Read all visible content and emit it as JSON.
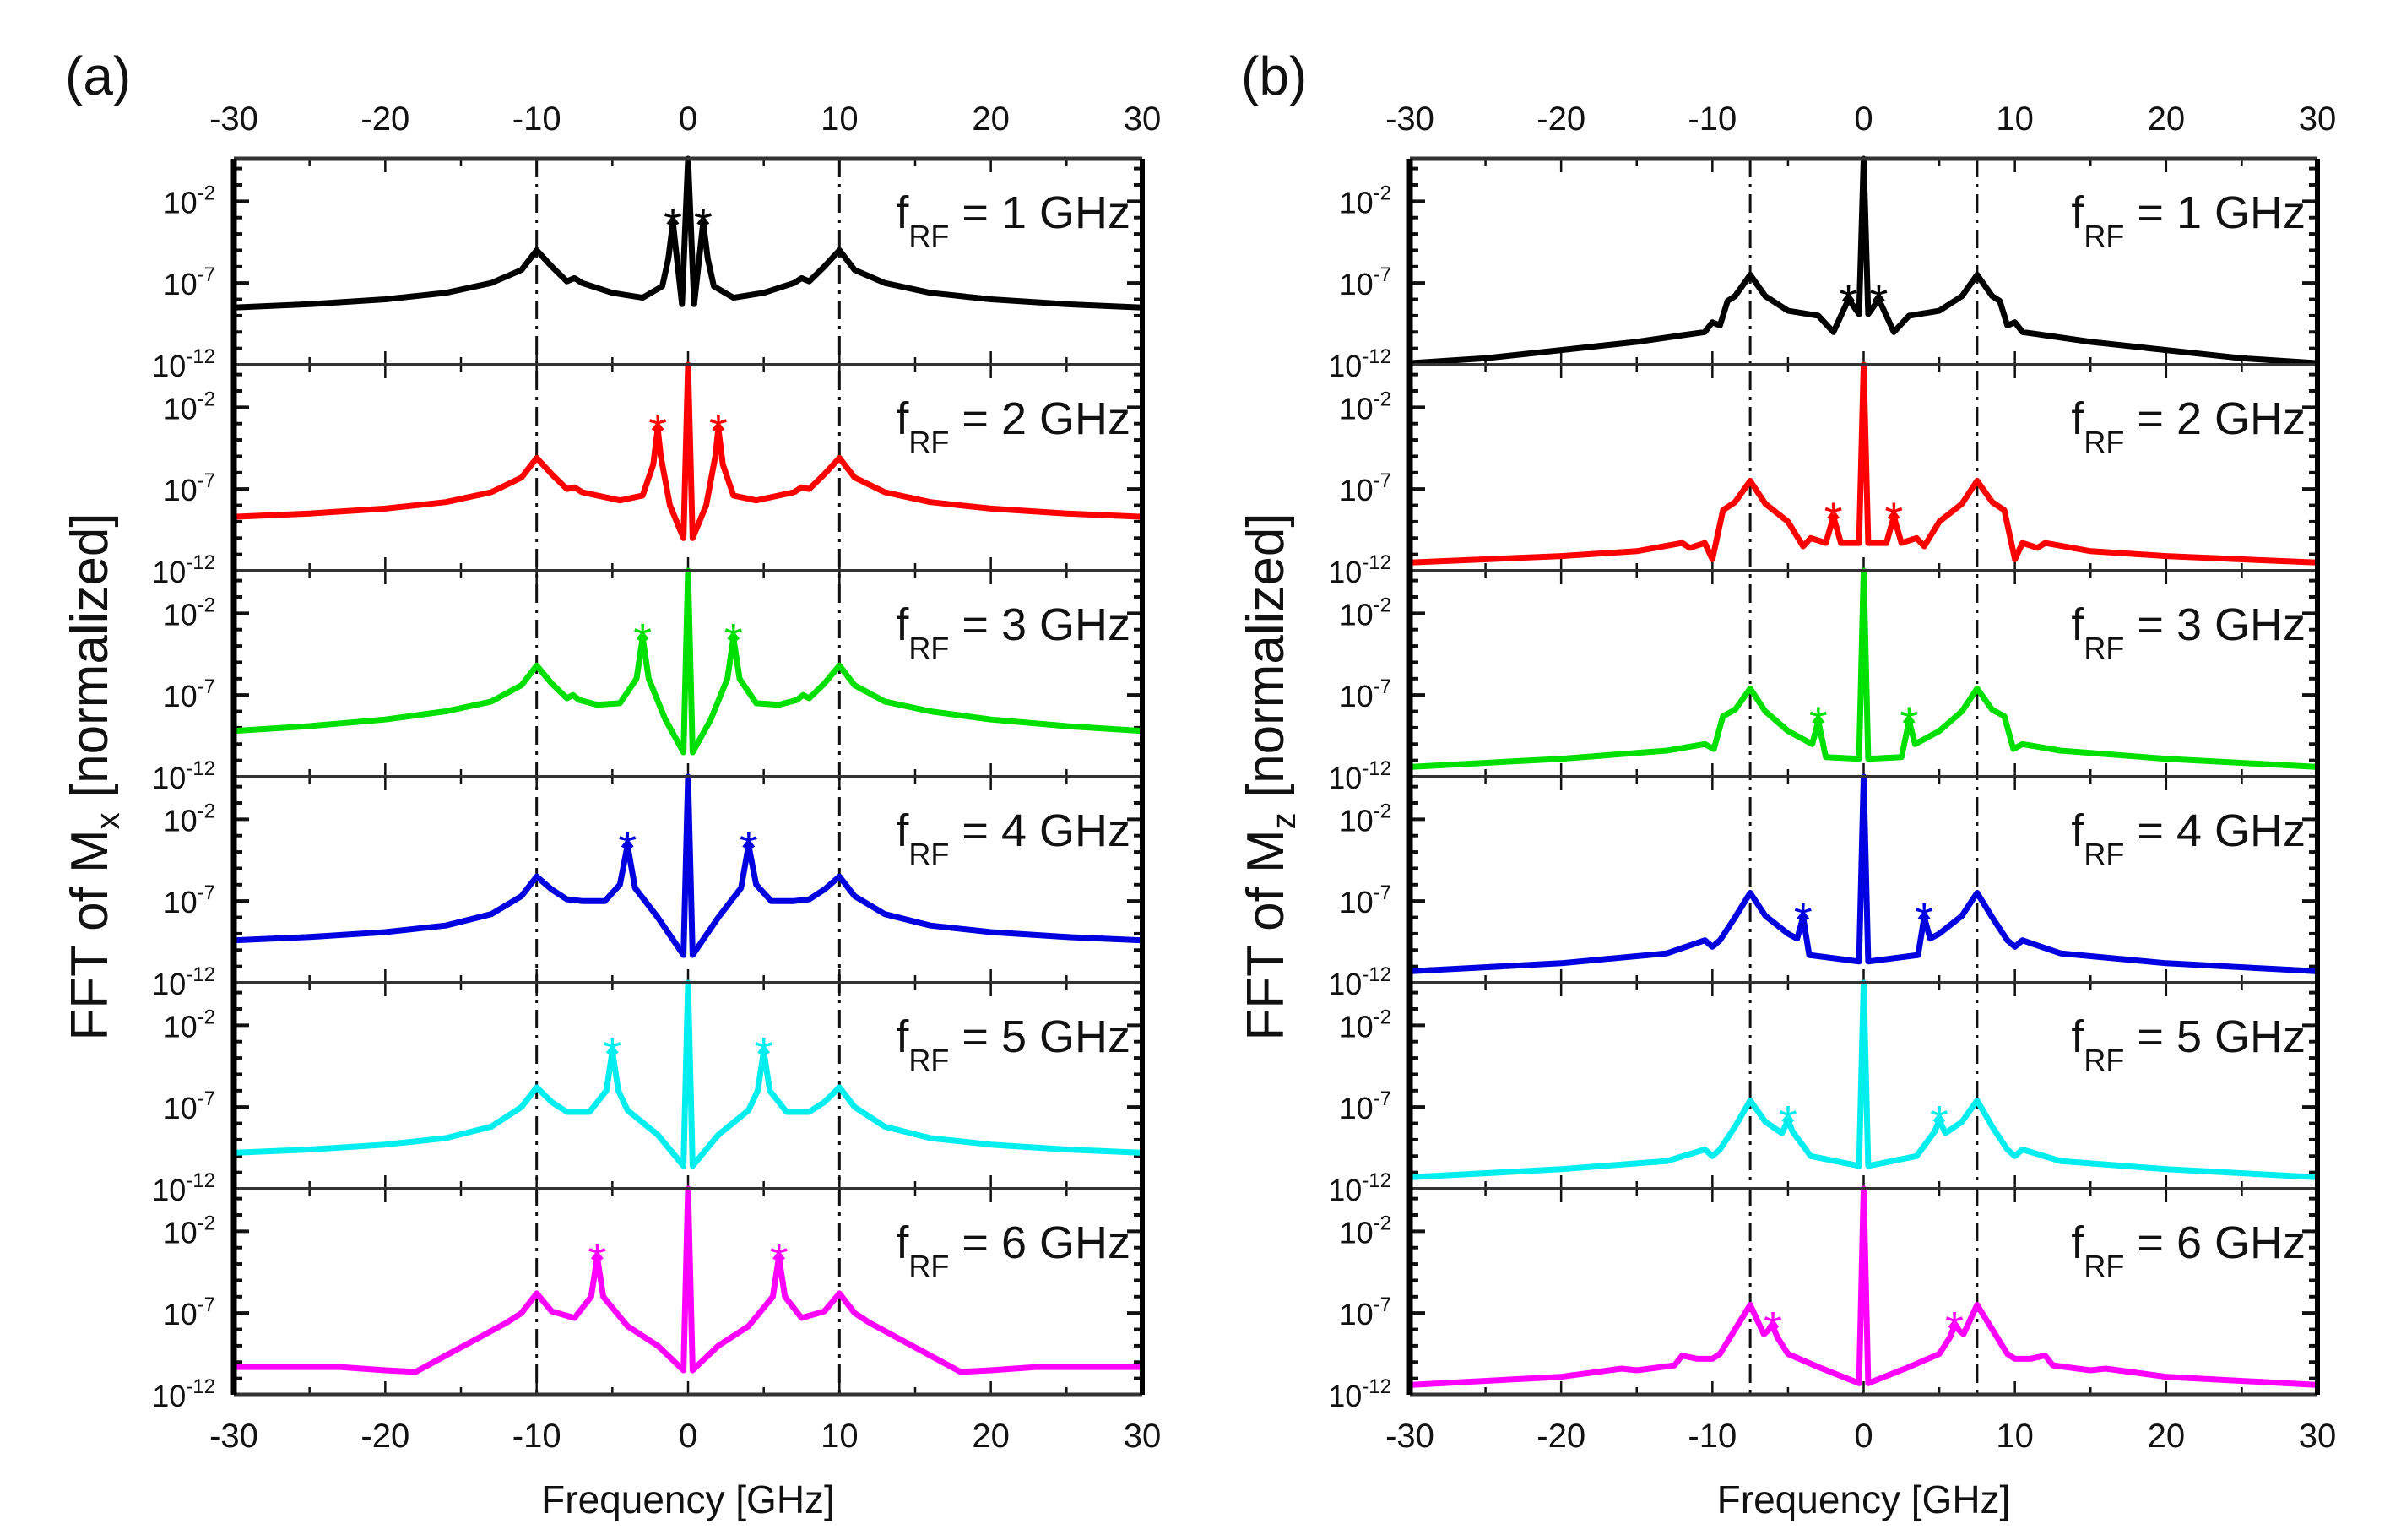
{
  "chart_data": [
    {
      "panel_label": "(a)",
      "type": "line",
      "ylabel_main": "FFT of M",
      "ylabel_sub": "x",
      "ylabel_tail": " [normalized]",
      "xlabel": "Frequency [GHz]",
      "xlim": [
        -30,
        30
      ],
      "xticks": [
        -30,
        -20,
        -10,
        0,
        10,
        20,
        30
      ],
      "yscale": "log",
      "ylim_exponent": [
        -12,
        0.6
      ],
      "ytick_exponents": [
        -12,
        -7,
        -2
      ],
      "ytick_base": "10",
      "reference_lines": [
        -10,
        10
      ],
      "label_prefix": "f",
      "label_sub": "RF",
      "symmetric": true,
      "series": [
        {
          "name": "= 1 GHz",
          "color": "#000000",
          "f_rf": 1,
          "points": [
            [
              0,
              0.6
            ],
            [
              0.4,
              -8.3
            ],
            [
              0.8,
              -5
            ],
            [
              1,
              -3.3
            ],
            [
              1.3,
              -5.5
            ],
            [
              1.7,
              -7.2
            ],
            [
              3,
              -7.9
            ],
            [
              5,
              -7.6
            ],
            [
              7,
              -7
            ],
            [
              7.5,
              -6.7
            ],
            [
              8,
              -6.9
            ],
            [
              9,
              -6
            ],
            [
              10,
              -5
            ],
            [
              11,
              -6.2
            ],
            [
              13,
              -7
            ],
            [
              16,
              -7.6
            ],
            [
              20,
              -8
            ],
            [
              25,
              -8.3
            ],
            [
              30,
              -8.5
            ]
          ]
        },
        {
          "name": "= 2 GHz",
          "color": "#ff0000",
          "f_rf": 2,
          "points": [
            [
              0,
              0.6
            ],
            [
              0.3,
              -10
            ],
            [
              1.2,
              -8
            ],
            [
              1.8,
              -5
            ],
            [
              2,
              -3.3
            ],
            [
              2.3,
              -5.5
            ],
            [
              3,
              -7.4
            ],
            [
              4.5,
              -7.7
            ],
            [
              7,
              -7.2
            ],
            [
              7.5,
              -6.9
            ],
            [
              8,
              -7
            ],
            [
              9,
              -6.1
            ],
            [
              10,
              -5.1
            ],
            [
              11,
              -6.3
            ],
            [
              13,
              -7.2
            ],
            [
              16,
              -7.8
            ],
            [
              20,
              -8.2
            ],
            [
              25,
              -8.5
            ],
            [
              30,
              -8.7
            ]
          ]
        },
        {
          "name": "= 3 GHz",
          "color": "#00e000",
          "f_rf": 3,
          "points": [
            [
              0,
              0.6
            ],
            [
              0.3,
              -10.5
            ],
            [
              1.5,
              -8.5
            ],
            [
              2.6,
              -6
            ],
            [
              3,
              -3.5
            ],
            [
              3.4,
              -6
            ],
            [
              4.5,
              -7.5
            ],
            [
              6,
              -7.6
            ],
            [
              7.2,
              -7.3
            ],
            [
              7.6,
              -7
            ],
            [
              8,
              -7.2
            ],
            [
              9,
              -6.3
            ],
            [
              10,
              -5.2
            ],
            [
              11,
              -6.4
            ],
            [
              13,
              -7.4
            ],
            [
              16,
              -8
            ],
            [
              20,
              -8.5
            ],
            [
              25,
              -8.9
            ],
            [
              30,
              -9.2
            ]
          ]
        },
        {
          "name": "= 4 GHz",
          "color": "#0000e0",
          "f_rf": 4,
          "points": [
            [
              0,
              0.6
            ],
            [
              0.3,
              -10.3
            ],
            [
              2,
              -8
            ],
            [
              3.5,
              -6.2
            ],
            [
              4,
              -3.6
            ],
            [
              4.5,
              -6
            ],
            [
              5.5,
              -7
            ],
            [
              7,
              -7
            ],
            [
              8,
              -6.9
            ],
            [
              9,
              -6.3
            ],
            [
              10,
              -5.5
            ],
            [
              11,
              -6.7
            ],
            [
              13,
              -7.8
            ],
            [
              16,
              -8.5
            ],
            [
              20,
              -8.9
            ],
            [
              25,
              -9.2
            ],
            [
              30,
              -9.4
            ]
          ]
        },
        {
          "name": "= 5 GHz",
          "color": "#00eeee",
          "f_rf": 5,
          "points": [
            [
              0,
              0.6
            ],
            [
              0.3,
              -10.6
            ],
            [
              2,
              -8.7
            ],
            [
              4,
              -7.2
            ],
            [
              4.6,
              -6
            ],
            [
              5,
              -3.6
            ],
            [
              5.4,
              -6
            ],
            [
              6.5,
              -7.3
            ],
            [
              8,
              -7.3
            ],
            [
              9,
              -6.7
            ],
            [
              10,
              -5.8
            ],
            [
              11,
              -7
            ],
            [
              13,
              -8.2
            ],
            [
              16,
              -8.9
            ],
            [
              20,
              -9.3
            ],
            [
              25,
              -9.6
            ],
            [
              30,
              -9.8
            ]
          ]
        },
        {
          "name": "= 6 GHz",
          "color": "#ff00ff",
          "f_rf": 6,
          "points": [
            [
              0,
              0.6
            ],
            [
              0.3,
              -10.5
            ],
            [
              2,
              -9
            ],
            [
              4,
              -7.8
            ],
            [
              5.6,
              -6
            ],
            [
              6,
              -3.6
            ],
            [
              6.4,
              -6
            ],
            [
              7.5,
              -7.3
            ],
            [
              9,
              -6.9
            ],
            [
              10,
              -5.8
            ],
            [
              11,
              -7
            ],
            [
              12,
              -7.6
            ],
            [
              14,
              -8.6
            ],
            [
              16,
              -9.6
            ],
            [
              18,
              -10.6
            ],
            [
              20,
              -10.5
            ],
            [
              23,
              -10.3
            ],
            [
              30,
              -10.3
            ]
          ]
        }
      ]
    },
    {
      "panel_label": "(b)",
      "type": "line",
      "ylabel_main": "FFT of M",
      "ylabel_sub": "z",
      "ylabel_tail": " [normalized]",
      "xlabel": "Frequency [GHz]",
      "xlim": [
        -30,
        30
      ],
      "xticks": [
        -30,
        -20,
        -10,
        0,
        10,
        20,
        30
      ],
      "yscale": "log",
      "ylim_exponent": [
        -12,
        0.6
      ],
      "ytick_exponents": [
        -12,
        -7,
        -2
      ],
      "ytick_base": "10",
      "reference_lines": [
        -7.5,
        7.5
      ],
      "label_prefix": "f",
      "label_sub": "RF",
      "symmetric": true,
      "series": [
        {
          "name": "= 1 GHz",
          "color": "#000000",
          "f_rf": 1,
          "points": [
            [
              0,
              0.6
            ],
            [
              0.3,
              -8.9
            ],
            [
              1,
              -8
            ],
            [
              1.5,
              -9
            ],
            [
              2,
              -10
            ],
            [
              3,
              -9
            ],
            [
              5,
              -8.7
            ],
            [
              6.5,
              -7.8
            ],
            [
              7.5,
              -6.5
            ],
            [
              8.5,
              -7.8
            ],
            [
              9,
              -8.1
            ],
            [
              9.5,
              -9.6
            ],
            [
              10,
              -9.4
            ],
            [
              10.5,
              -10
            ],
            [
              12,
              -10.2
            ],
            [
              15,
              -10.6
            ],
            [
              20,
              -11.1
            ],
            [
              25,
              -11.6
            ],
            [
              30,
              -11.9
            ]
          ]
        },
        {
          "name": "= 2 GHz",
          "color": "#ff0000",
          "f_rf": 2,
          "points": [
            [
              0,
              0.6
            ],
            [
              0.3,
              -10.3
            ],
            [
              1.5,
              -10.3
            ],
            [
              2,
              -8.7
            ],
            [
              2.5,
              -10.3
            ],
            [
              3.5,
              -10
            ],
            [
              4,
              -10.5
            ],
            [
              5,
              -9
            ],
            [
              6.5,
              -7.9
            ],
            [
              7.5,
              -6.5
            ],
            [
              8.5,
              -7.8
            ],
            [
              9.3,
              -8.3
            ],
            [
              10,
              -11.3
            ],
            [
              10.5,
              -10.3
            ],
            [
              11.5,
              -10.6
            ],
            [
              12,
              -10.3
            ],
            [
              15,
              -10.8
            ],
            [
              20,
              -11.1
            ],
            [
              30,
              -11.5
            ]
          ]
        },
        {
          "name": "= 3 GHz",
          "color": "#00e000",
          "f_rf": 3,
          "points": [
            [
              0,
              0.6
            ],
            [
              0.3,
              -10.9
            ],
            [
              2.5,
              -10.8
            ],
            [
              3,
              -8.6
            ],
            [
              3.4,
              -10
            ],
            [
              5,
              -9.2
            ],
            [
              6.5,
              -8
            ],
            [
              7.5,
              -6.6
            ],
            [
              8.5,
              -7.9
            ],
            [
              9.3,
              -8.3
            ],
            [
              9.9,
              -10.3
            ],
            [
              10.5,
              -10
            ],
            [
              13,
              -10.4
            ],
            [
              20,
              -10.9
            ],
            [
              30,
              -11.4
            ]
          ]
        },
        {
          "name": "= 4 GHz",
          "color": "#0000e0",
          "f_rf": 4,
          "points": [
            [
              0,
              0.6
            ],
            [
              0.3,
              -10.7
            ],
            [
              3.6,
              -10.3
            ],
            [
              4,
              -8
            ],
            [
              4.4,
              -9.3
            ],
            [
              5,
              -9
            ],
            [
              6.5,
              -7.9
            ],
            [
              7.5,
              -6.5
            ],
            [
              8.5,
              -8
            ],
            [
              9.5,
              -9.4
            ],
            [
              10,
              -9.8
            ],
            [
              10.5,
              -9.4
            ],
            [
              13,
              -10.2
            ],
            [
              20,
              -10.8
            ],
            [
              30,
              -11.3
            ]
          ]
        },
        {
          "name": "= 5 GHz",
          "color": "#00eeee",
          "f_rf": 5,
          "points": [
            [
              0,
              0.6
            ],
            [
              0.3,
              -10.6
            ],
            [
              3.5,
              -10
            ],
            [
              4.7,
              -8.5
            ],
            [
              5,
              -7.8
            ],
            [
              5.4,
              -8.6
            ],
            [
              6.5,
              -7.9
            ],
            [
              7.5,
              -6.6
            ],
            [
              8.5,
              -8.2
            ],
            [
              9.5,
              -9.6
            ],
            [
              10,
              -10
            ],
            [
              10.5,
              -9.6
            ],
            [
              13,
              -10.3
            ],
            [
              20,
              -10.8
            ],
            [
              30,
              -11.3
            ]
          ]
        },
        {
          "name": "= 6 GHz",
          "color": "#ff00ff",
          "f_rf": 6,
          "points": [
            [
              0,
              0.6
            ],
            [
              0.3,
              -11.3
            ],
            [
              3,
              -10.3
            ],
            [
              5,
              -9.5
            ],
            [
              5.7,
              -8.5
            ],
            [
              6,
              -7.8
            ],
            [
              6.6,
              -8.3
            ],
            [
              7.5,
              -6.5
            ],
            [
              8.5,
              -8
            ],
            [
              9.5,
              -9.5
            ],
            [
              10,
              -9.8
            ],
            [
              11,
              -9.8
            ],
            [
              12,
              -9.6
            ],
            [
              12.5,
              -10.2
            ],
            [
              15,
              -10.5
            ],
            [
              16,
              -10.4
            ],
            [
              20,
              -10.9
            ],
            [
              30,
              -11.4
            ]
          ]
        }
      ]
    }
  ]
}
